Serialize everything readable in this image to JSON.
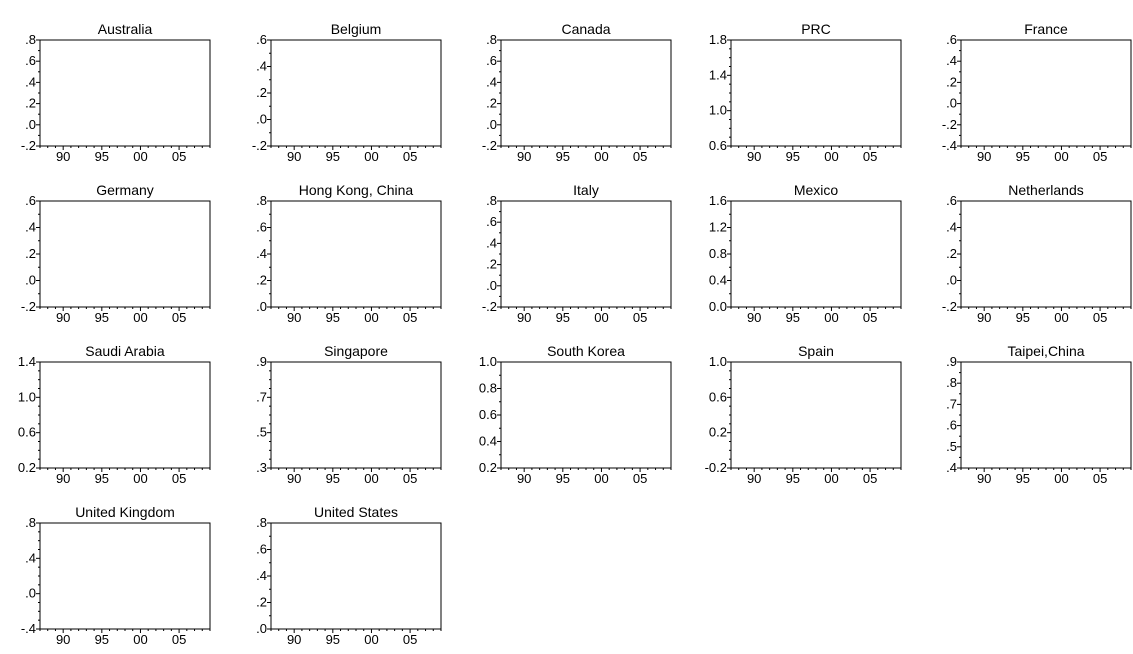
{
  "chart_data": [
    {
      "type": "line",
      "title": "Australia",
      "yticks": [
        ".8",
        ".6",
        ".4",
        ".2",
        ".0",
        "-.2"
      ],
      "ylim": [
        -0.2,
        0.8
      ],
      "xticks": [
        "90",
        "95",
        "00",
        "05"
      ],
      "series": []
    },
    {
      "type": "line",
      "title": "Belgium",
      "yticks": [
        ".6",
        ".4",
        ".2",
        ".0",
        "-.2"
      ],
      "ylim": [
        -0.2,
        0.6
      ],
      "xticks": [
        "90",
        "95",
        "00",
        "05"
      ],
      "series": []
    },
    {
      "type": "line",
      "title": "Canada",
      "yticks": [
        ".8",
        ".6",
        ".4",
        ".2",
        ".0",
        "-.2"
      ],
      "ylim": [
        -0.2,
        0.8
      ],
      "xticks": [
        "90",
        "95",
        "00",
        "05"
      ],
      "series": []
    },
    {
      "type": "line",
      "title": "PRC",
      "yticks": [
        "1.8",
        "1.4",
        "1.0",
        "0.6"
      ],
      "ylim": [
        0.6,
        1.8
      ],
      "xticks": [
        "90",
        "95",
        "00",
        "05"
      ],
      "series": []
    },
    {
      "type": "line",
      "title": "France",
      "yticks": [
        ".6",
        ".4",
        ".2",
        ".0",
        "-.2",
        "-.4"
      ],
      "ylim": [
        -0.4,
        0.6
      ],
      "xticks": [
        "90",
        "95",
        "00",
        "05"
      ],
      "series": []
    },
    {
      "type": "line",
      "title": "Germany",
      "yticks": [
        ".6",
        ".4",
        ".2",
        ".0",
        "-.2"
      ],
      "ylim": [
        -0.2,
        0.6
      ],
      "xticks": [
        "90",
        "95",
        "00",
        "05"
      ],
      "series": []
    },
    {
      "type": "line",
      "title": "Hong Kong, China",
      "yticks": [
        ".8",
        ".6",
        ".4",
        ".2",
        ".0"
      ],
      "ylim": [
        0.0,
        0.8
      ],
      "xticks": [
        "90",
        "95",
        "00",
        "05"
      ],
      "series": []
    },
    {
      "type": "line",
      "title": "Italy",
      "yticks": [
        ".8",
        ".6",
        ".4",
        ".2",
        ".0",
        "-.2"
      ],
      "ylim": [
        -0.2,
        0.8
      ],
      "xticks": [
        "90",
        "95",
        "00",
        "05"
      ],
      "series": []
    },
    {
      "type": "line",
      "title": "Mexico",
      "yticks": [
        "1.6",
        "1.2",
        "0.8",
        "0.4",
        "0.0"
      ],
      "ylim": [
        0.0,
        1.6
      ],
      "xticks": [
        "90",
        "95",
        "00",
        "05"
      ],
      "series": []
    },
    {
      "type": "line",
      "title": "Netherlands",
      "yticks": [
        ".6",
        ".4",
        ".2",
        ".0",
        "-.2"
      ],
      "ylim": [
        -0.2,
        0.6
      ],
      "xticks": [
        "90",
        "95",
        "00",
        "05"
      ],
      "series": []
    },
    {
      "type": "line",
      "title": "Saudi Arabia",
      "yticks": [
        "1.4",
        "1.0",
        "0.6",
        "0.2"
      ],
      "ylim": [
        0.2,
        1.4
      ],
      "xticks": [
        "90",
        "95",
        "00",
        "05"
      ],
      "series": []
    },
    {
      "type": "line",
      "title": "Singapore",
      "yticks": [
        ".9",
        ".7",
        ".5",
        ".3"
      ],
      "ylim": [
        0.3,
        0.9
      ],
      "xticks": [
        "90",
        "95",
        "00",
        "05"
      ],
      "series": []
    },
    {
      "type": "line",
      "title": "South Korea",
      "yticks": [
        "1.0",
        "0.8",
        "0.6",
        "0.4",
        "0.2"
      ],
      "ylim": [
        0.2,
        1.0
      ],
      "xticks": [
        "90",
        "95",
        "00",
        "05"
      ],
      "series": []
    },
    {
      "type": "line",
      "title": "Spain",
      "yticks": [
        "1.0",
        "0.6",
        "0.2",
        "-0.2"
      ],
      "ylim": [
        -0.2,
        1.0
      ],
      "xticks": [
        "90",
        "95",
        "00",
        "05"
      ],
      "series": []
    },
    {
      "type": "line",
      "title": "Taipei,China",
      "yticks": [
        ".9",
        ".8",
        ".7",
        ".6",
        ".5",
        ".4"
      ],
      "ylim": [
        0.4,
        0.9
      ],
      "xticks": [
        "90",
        "95",
        "00",
        "05"
      ],
      "series": []
    },
    {
      "type": "line",
      "title": "United Kingdom",
      "yticks": [
        ".8",
        ".4",
        ".0",
        "-.4"
      ],
      "ylim": [
        -0.4,
        0.8
      ],
      "xticks": [
        "90",
        "95",
        "00",
        "05"
      ],
      "series": []
    },
    {
      "type": "line",
      "title": "United States",
      "yticks": [
        ".8",
        ".6",
        ".4",
        ".2",
        ".0"
      ],
      "ylim": [
        0.0,
        0.8
      ],
      "xticks": [
        "90",
        "95",
        "00",
        "05"
      ],
      "series": []
    }
  ]
}
